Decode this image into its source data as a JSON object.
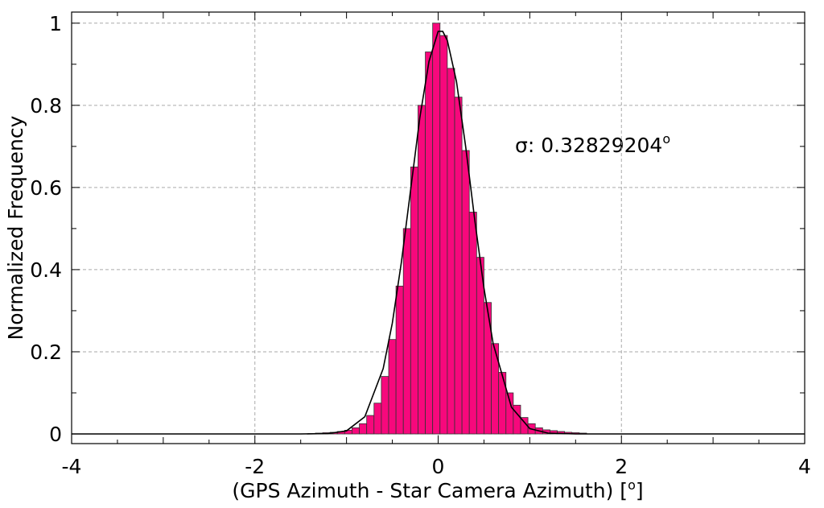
{
  "chart_data": {
    "type": "histogram",
    "xlabel": [
      "(GPS Azimuth - Star Camera Azimuth) [",
      "o",
      "]"
    ],
    "ylabel": "Normalized Frequency",
    "annotation": {
      "text": "σ: 0.32829204",
      "superscript": "o"
    },
    "bins": [
      -1.42,
      -1.34,
      -1.26,
      -1.18,
      -1.1,
      -1.02,
      -0.94,
      -0.86,
      -0.78,
      -0.7,
      -0.62,
      -0.54,
      -0.46,
      -0.38,
      -0.3,
      -0.22,
      -0.14,
      -0.06,
      0.02,
      0.1,
      0.18,
      0.26,
      0.34,
      0.42,
      0.5,
      0.58,
      0.66,
      0.74,
      0.82,
      0.9,
      0.98,
      1.06,
      1.14,
      1.22,
      1.3,
      1.38,
      1.46,
      1.54,
      1.62
    ],
    "values": [
      0.001,
      0.002,
      0.003,
      0.004,
      0.006,
      0.009,
      0.015,
      0.025,
      0.045,
      0.075,
      0.14,
      0.23,
      0.36,
      0.5,
      0.65,
      0.8,
      0.93,
      1.0,
      0.97,
      0.89,
      0.82,
      0.69,
      0.54,
      0.43,
      0.32,
      0.22,
      0.15,
      0.1,
      0.07,
      0.04,
      0.025,
      0.015,
      0.01,
      0.008,
      0.006,
      0.004,
      0.003,
      0.002
    ],
    "color": "#f7087c",
    "fit": {
      "color": "#000000",
      "x": [
        -4,
        -1.5,
        -1.2,
        -1.0,
        -0.8,
        -0.6,
        -0.5,
        -0.4,
        -0.3,
        -0.2,
        -0.1,
        0,
        0.05,
        0.1,
        0.2,
        0.3,
        0.4,
        0.5,
        0.6,
        0.8,
        1.0,
        1.2,
        1.5,
        4
      ],
      "values": [
        0,
        0,
        0.001,
        0.0075,
        0.042,
        0.159,
        0.27,
        0.42,
        0.595,
        0.77,
        0.907,
        0.98,
        0.98,
        0.958,
        0.858,
        0.7,
        0.52,
        0.355,
        0.22,
        0.065,
        0.013,
        0.002,
        0,
        0
      ]
    },
    "xlim": [
      -4,
      4
    ],
    "xticks": [
      -4,
      -2,
      0,
      2,
      4
    ],
    "ylim": [
      -0.0235,
      1.027
    ],
    "yticks": [
      0,
      0.2,
      0.4,
      0.6,
      0.8,
      1
    ],
    "grid": true
  }
}
